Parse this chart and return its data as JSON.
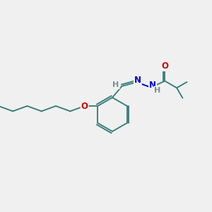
{
  "bg_color": "#f0f0f0",
  "C": "#3d8080",
  "N": "#0000cc",
  "O": "#cc0000",
  "H": "#7a9090",
  "lw": 1.4,
  "fs": 8.5
}
